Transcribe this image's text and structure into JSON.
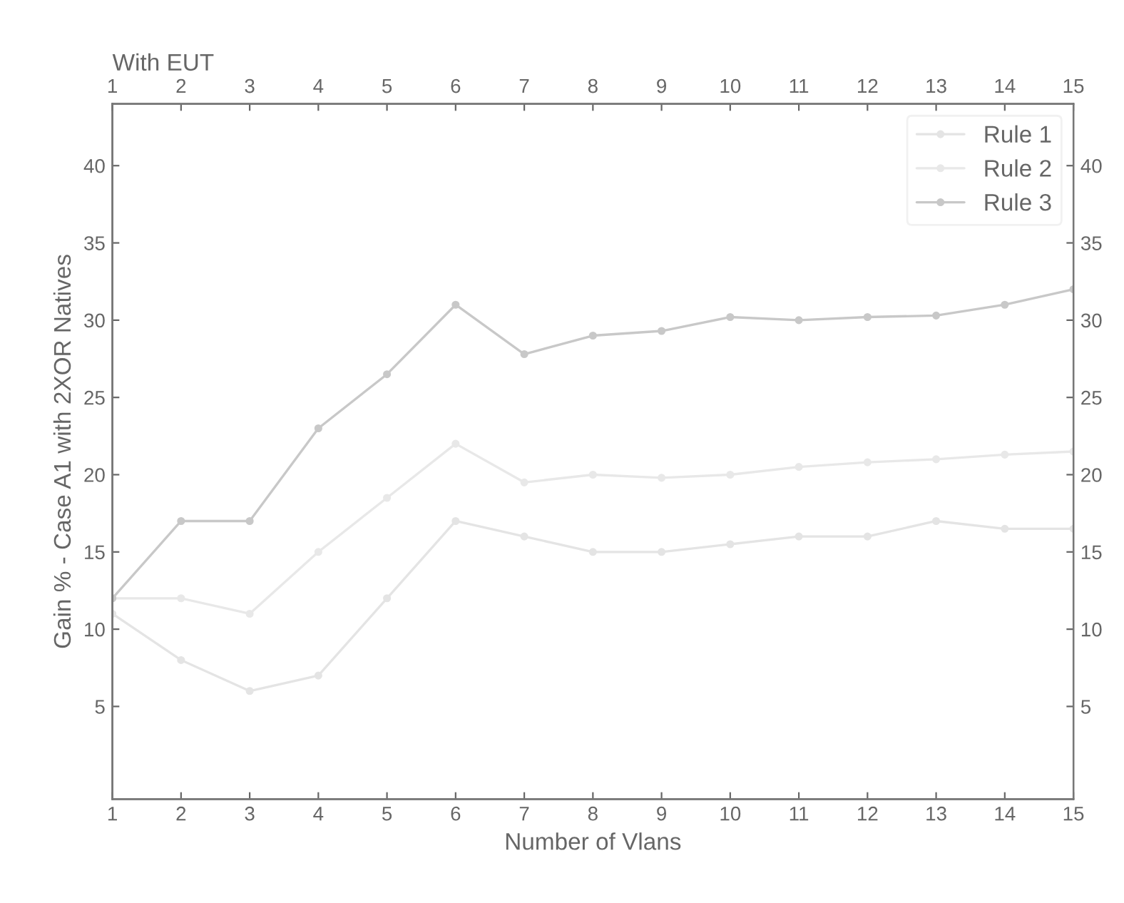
{
  "chart_data": {
    "type": "line",
    "xlabel": "Number of Vlans",
    "ylabel": "Gain % - Case A1 with 2XOR Natives",
    "x2label": "With EUT",
    "x": [
      1,
      2,
      3,
      4,
      5,
      6,
      7,
      8,
      9,
      10,
      11,
      12,
      13,
      14,
      15
    ],
    "series": [
      {
        "name": "Rule 1",
        "color": "#e4e4e4",
        "values": [
          11,
          8,
          6,
          7,
          12,
          17,
          16,
          15,
          15,
          15.5,
          16,
          16,
          17,
          16.5,
          16.5
        ]
      },
      {
        "name": "Rule 2",
        "color": "#e8e8e8",
        "values": [
          12,
          12,
          11,
          15,
          18.5,
          22,
          19.5,
          20,
          19.8,
          20,
          20.5,
          20.8,
          21,
          21.3,
          21.5
        ]
      },
      {
        "name": "Rule 3",
        "color": "#c8c8c8",
        "values": [
          12,
          17,
          17,
          23,
          26.5,
          31,
          27.8,
          29,
          29.3,
          30.2,
          30,
          30.2,
          30.3,
          31,
          32
        ]
      }
    ],
    "xlim": [
      1,
      15
    ],
    "xticks": [
      1,
      2,
      3,
      4,
      5,
      6,
      7,
      8,
      9,
      10,
      11,
      12,
      13,
      14,
      15
    ],
    "x2lim": [
      1,
      15
    ],
    "x2ticks": [
      1,
      2,
      3,
      4,
      5,
      6,
      7,
      8,
      9,
      10,
      11,
      12,
      13,
      14,
      15
    ],
    "ylim": [
      -1,
      44
    ],
    "yticks": [
      5,
      10,
      15,
      20,
      25,
      30,
      35,
      40
    ],
    "y2lim": [
      -1,
      44
    ],
    "y2ticks": [
      5,
      10,
      15,
      20,
      25,
      30,
      35,
      40
    ],
    "marker": "circle",
    "line_style": "solid",
    "legend": "top right",
    "grid": false
  }
}
